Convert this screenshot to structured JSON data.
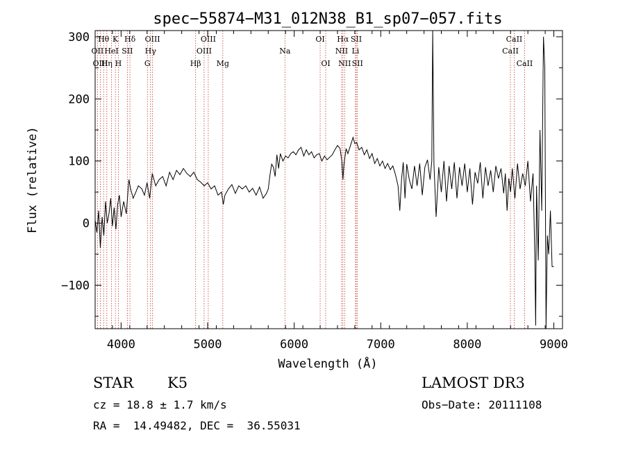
{
  "chart_data": {
    "type": "line",
    "title": "spec−55874−M31_012N38_B1_sp07−057.fits",
    "xlabel": "Wavelength (Å)",
    "ylabel": "Flux (relative)",
    "xlim": [
      3700,
      9100
    ],
    "ylim": [
      -170,
      310
    ],
    "xticks": [
      4000,
      5000,
      6000,
      7000,
      8000,
      9000
    ],
    "xtick_labels": [
      "4000",
      "5000",
      "6000",
      "7000",
      "8000",
      "9000"
    ],
    "yticks": [
      -100,
      0,
      100,
      200,
      300
    ],
    "ytick_labels": [
      "−100",
      "0",
      "100",
      "200",
      "300"
    ],
    "grid": false,
    "series": [
      {
        "name": "flux",
        "points": [
          [
            3700,
            5
          ],
          [
            3720,
            -15
          ],
          [
            3740,
            20
          ],
          [
            3760,
            -40
          ],
          [
            3780,
            10
          ],
          [
            3800,
            -20
          ],
          [
            3820,
            35
          ],
          [
            3840,
            0
          ],
          [
            3860,
            15
          ],
          [
            3880,
            40
          ],
          [
            3900,
            -5
          ],
          [
            3920,
            25
          ],
          [
            3940,
            -10
          ],
          [
            3960,
            30
          ],
          [
            3980,
            45
          ],
          [
            4000,
            10
          ],
          [
            4030,
            35
          ],
          [
            4060,
            15
          ],
          [
            4090,
            70
          ],
          [
            4110,
            55
          ],
          [
            4140,
            40
          ],
          [
            4170,
            50
          ],
          [
            4200,
            60
          ],
          [
            4240,
            55
          ],
          [
            4270,
            45
          ],
          [
            4300,
            65
          ],
          [
            4330,
            40
          ],
          [
            4360,
            80
          ],
          [
            4400,
            60
          ],
          [
            4440,
            70
          ],
          [
            4480,
            75
          ],
          [
            4520,
            60
          ],
          [
            4560,
            82
          ],
          [
            4600,
            70
          ],
          [
            4640,
            85
          ],
          [
            4680,
            78
          ],
          [
            4720,
            88
          ],
          [
            4760,
            80
          ],
          [
            4800,
            75
          ],
          [
            4840,
            82
          ],
          [
            4880,
            70
          ],
          [
            4920,
            66
          ],
          [
            4960,
            60
          ],
          [
            5000,
            65
          ],
          [
            5040,
            55
          ],
          [
            5080,
            60
          ],
          [
            5120,
            45
          ],
          [
            5160,
            50
          ],
          [
            5180,
            30
          ],
          [
            5200,
            45
          ],
          [
            5240,
            55
          ],
          [
            5280,
            62
          ],
          [
            5320,
            48
          ],
          [
            5360,
            60
          ],
          [
            5400,
            55
          ],
          [
            5440,
            60
          ],
          [
            5480,
            50
          ],
          [
            5520,
            56
          ],
          [
            5560,
            45
          ],
          [
            5600,
            58
          ],
          [
            5640,
            40
          ],
          [
            5680,
            48
          ],
          [
            5700,
            55
          ],
          [
            5720,
            78
          ],
          [
            5740,
            95
          ],
          [
            5760,
            90
          ],
          [
            5780,
            75
          ],
          [
            5800,
            110
          ],
          [
            5820,
            88
          ],
          [
            5840,
            112
          ],
          [
            5870,
            100
          ],
          [
            5900,
            108
          ],
          [
            5930,
            105
          ],
          [
            5960,
            112
          ],
          [
            5990,
            115
          ],
          [
            6020,
            110
          ],
          [
            6050,
            118
          ],
          [
            6080,
            122
          ],
          [
            6110,
            108
          ],
          [
            6140,
            118
          ],
          [
            6170,
            110
          ],
          [
            6200,
            115
          ],
          [
            6230,
            105
          ],
          [
            6260,
            110
          ],
          [
            6290,
            112
          ],
          [
            6320,
            100
          ],
          [
            6350,
            108
          ],
          [
            6380,
            102
          ],
          [
            6410,
            106
          ],
          [
            6440,
            110
          ],
          [
            6470,
            118
          ],
          [
            6500,
            125
          ],
          [
            6530,
            120
          ],
          [
            6550,
            100
          ],
          [
            6563,
            70
          ],
          [
            6575,
            95
          ],
          [
            6600,
            120
          ],
          [
            6620,
            112
          ],
          [
            6650,
            125
          ],
          [
            6680,
            138
          ],
          [
            6700,
            128
          ],
          [
            6720,
            130
          ],
          [
            6750,
            118
          ],
          [
            6780,
            122
          ],
          [
            6810,
            110
          ],
          [
            6840,
            118
          ],
          [
            6870,
            104
          ],
          [
            6900,
            112
          ],
          [
            6930,
            96
          ],
          [
            6960,
            104
          ],
          [
            6990,
            92
          ],
          [
            7020,
            100
          ],
          [
            7050,
            88
          ],
          [
            7080,
            96
          ],
          [
            7110,
            86
          ],
          [
            7140,
            92
          ],
          [
            7170,
            78
          ],
          [
            7200,
            60
          ],
          [
            7220,
            20
          ],
          [
            7240,
            70
          ],
          [
            7260,
            98
          ],
          [
            7280,
            40
          ],
          [
            7300,
            95
          ],
          [
            7330,
            70
          ],
          [
            7360,
            55
          ],
          [
            7390,
            92
          ],
          [
            7420,
            60
          ],
          [
            7450,
            96
          ],
          [
            7480,
            45
          ],
          [
            7510,
            90
          ],
          [
            7540,
            102
          ],
          [
            7570,
            70
          ],
          [
            7590,
            100
          ],
          [
            7600,
            310
          ],
          [
            7615,
            95
          ],
          [
            7640,
            10
          ],
          [
            7670,
            90
          ],
          [
            7700,
            50
          ],
          [
            7730,
            100
          ],
          [
            7760,
            35
          ],
          [
            7790,
            92
          ],
          [
            7820,
            55
          ],
          [
            7850,
            98
          ],
          [
            7880,
            40
          ],
          [
            7910,
            90
          ],
          [
            7940,
            60
          ],
          [
            7970,
            96
          ],
          [
            8000,
            50
          ],
          [
            8030,
            88
          ],
          [
            8060,
            30
          ],
          [
            8090,
            82
          ],
          [
            8120,
            64
          ],
          [
            8150,
            98
          ],
          [
            8180,
            40
          ],
          [
            8210,
            90
          ],
          [
            8240,
            60
          ],
          [
            8270,
            85
          ],
          [
            8300,
            50
          ],
          [
            8330,
            92
          ],
          [
            8360,
            72
          ],
          [
            8390,
            88
          ],
          [
            8420,
            48
          ],
          [
            8440,
            80
          ],
          [
            8460,
            20
          ],
          [
            8480,
            72
          ],
          [
            8500,
            50
          ],
          [
            8520,
            88
          ],
          [
            8550,
            40
          ],
          [
            8580,
            96
          ],
          [
            8610,
            55
          ],
          [
            8640,
            80
          ],
          [
            8670,
            60
          ],
          [
            8700,
            100
          ],
          [
            8730,
            35
          ],
          [
            8760,
            80
          ],
          [
            8780,
            -50
          ],
          [
            8790,
            -165
          ],
          [
            8800,
            60
          ],
          [
            8820,
            -60
          ],
          [
            8840,
            150
          ],
          [
            8860,
            20
          ],
          [
            8880,
            300
          ],
          [
            8895,
            250
          ],
          [
            8910,
            -170
          ],
          [
            8925,
            -20
          ],
          [
            8940,
            -50
          ],
          [
            8960,
            20
          ],
          [
            8980,
            -70
          ],
          [
            9000,
            -70
          ]
        ]
      }
    ],
    "lines": [
      {
        "name": "Hθ",
        "wl": 3798,
        "row": 0
      },
      {
        "name": "K",
        "wl": 3934,
        "row": 0
      },
      {
        "name": "Hδ",
        "wl": 4102,
        "row": 0
      },
      {
        "name": "OIII",
        "wl": 4363,
        "row": 0
      },
      {
        "name": "OIII",
        "wl": 5007,
        "row": 0
      },
      {
        "name": "OI",
        "wl": 6300,
        "row": 0
      },
      {
        "name": "Hα",
        "wl": 6563,
        "row": 0
      },
      {
        "name": "SII",
        "wl": 6717,
        "row": 0
      },
      {
        "name": "CaII",
        "wl": 8542,
        "row": 0
      },
      {
        "name": "OII",
        "wl": 3727,
        "row": 1
      },
      {
        "name": "HeI",
        "wl": 3889,
        "row": 1
      },
      {
        "name": "SII",
        "wl": 4072,
        "row": 1
      },
      {
        "name": "Hγ",
        "wl": 4340,
        "row": 1
      },
      {
        "name": "OIII",
        "wl": 4959,
        "row": 1
      },
      {
        "name": "Na",
        "wl": 5893,
        "row": 1
      },
      {
        "name": "NII",
        "wl": 6548,
        "row": 1
      },
      {
        "name": "Li",
        "wl": 6708,
        "row": 1
      },
      {
        "name": "CaII",
        "wl": 8498,
        "row": 1
      },
      {
        "name": "OIII",
        "wl": 3760,
        "row": 2
      },
      {
        "name": "Hη",
        "wl": 3835,
        "row": 2
      },
      {
        "name": "H",
        "wl": 3968,
        "row": 2
      },
      {
        "name": "G",
        "wl": 4304,
        "row": 2
      },
      {
        "name": "Hβ",
        "wl": 4861,
        "row": 2
      },
      {
        "name": "Mg",
        "wl": 5175,
        "row": 2
      },
      {
        "name": "OI",
        "wl": 6364,
        "row": 2
      },
      {
        "name": "NII",
        "wl": 6583,
        "row": 2
      },
      {
        "name": "SII",
        "wl": 6731,
        "row": 2
      },
      {
        "name": "CaII",
        "wl": 8662,
        "row": 2
      }
    ]
  },
  "info": {
    "class": "STAR",
    "subclass": "K5",
    "survey": "LAMOST DR3",
    "cz": "cz = 18.8 ± 1.7 km/s",
    "obs_date": "Obs−Date: 20111108",
    "radec": "RA =  14.49482, DEC =  36.55031"
  }
}
